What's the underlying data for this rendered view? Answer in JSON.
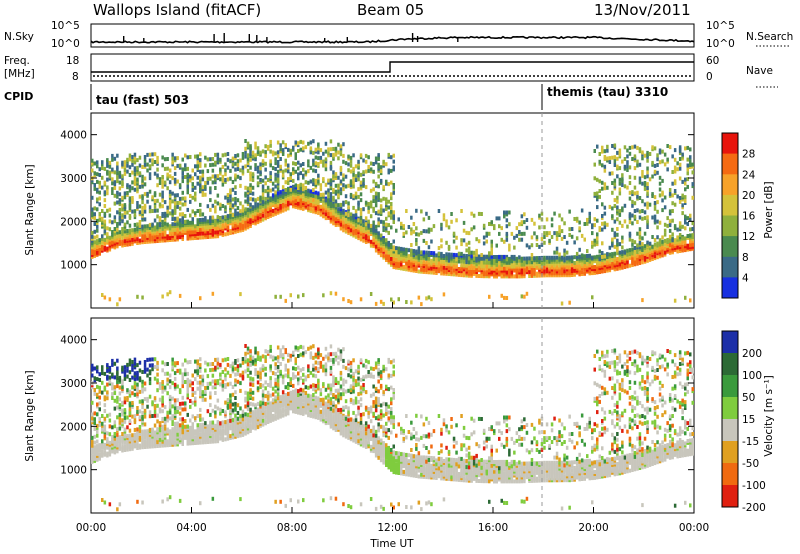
{
  "header": {
    "station": "Wallops Island (fitACF)",
    "beam": "Beam 05",
    "date": "13/Nov/2011"
  },
  "panels": {
    "nsky": {
      "label": "N.Sky",
      "ticks": [
        "10^5",
        "10^0"
      ]
    },
    "nsearch": {
      "label": "N.Search",
      "ticks": [
        "10^5",
        "10^0"
      ]
    },
    "freq": {
      "label1": "Freq.",
      "label2": "[MHz]",
      "ticks": [
        "18",
        "8"
      ]
    },
    "nave": {
      "label": "Nave",
      "ticks": [
        "60",
        "0"
      ]
    },
    "cpid": {
      "label": "CPID",
      "mode1": "tau (fast) 503",
      "mode2": "themis (tau) 3310"
    }
  },
  "chart_data": [
    {
      "type": "heatmap",
      "parameter": "Power",
      "xlabel": "",
      "ylabel": "Slant Range [km]",
      "ylim": [
        0,
        4500
      ],
      "yticks": [
        1000,
        2000,
        3000,
        4000
      ],
      "xlim": [
        0,
        24
      ],
      "colorbar": {
        "label": "Power [dB]",
        "ticks": [
          "28",
          "24",
          "20",
          "16",
          "12",
          "8",
          "4"
        ],
        "colors": [
          "#e8140c",
          "#f56a12",
          "#f7a229",
          "#d4c23a",
          "#8fb03c",
          "#4a8a4f",
          "#3a6a86",
          "#1730e0"
        ]
      },
      "echo_bands": [
        {
          "desc": "main ground scatter",
          "hours": [
            0,
            1,
            2,
            3,
            4,
            5,
            6,
            7,
            8,
            9,
            10,
            11,
            12,
            13,
            14,
            15,
            16,
            17,
            18,
            19,
            20,
            21,
            22,
            23,
            24
          ],
          "range_km": [
            1300,
            1550,
            1650,
            1700,
            1750,
            1800,
            1950,
            2250,
            2500,
            2350,
            1950,
            1650,
            1100,
            1000,
            950,
            900,
            880,
            880,
            900,
            900,
            950,
            1050,
            1200,
            1400,
            1500
          ]
        }
      ]
    },
    {
      "type": "heatmap",
      "parameter": "Velocity",
      "xlabel": "Time UT",
      "ylabel": "Slant Range [km]",
      "ylim": [
        0,
        4500
      ],
      "yticks": [
        1000,
        2000,
        3000,
        4000
      ],
      "xlim": [
        0,
        24
      ],
      "xticks": [
        "00:00",
        "04:00",
        "08:00",
        "12:00",
        "16:00",
        "20:00",
        "00:00"
      ],
      "colorbar": {
        "label": "Velocity [m s⁻¹]",
        "ticks": [
          "200",
          "100",
          "50",
          "15",
          "-15",
          "-50",
          "-100",
          "-200"
        ],
        "colors": [
          "#1c2fa8",
          "#2c6a35",
          "#3a9a3c",
          "#7fcc3e",
          "#c8c6bc",
          "#e0a020",
          "#f06a10",
          "#e02010"
        ]
      }
    }
  ]
}
